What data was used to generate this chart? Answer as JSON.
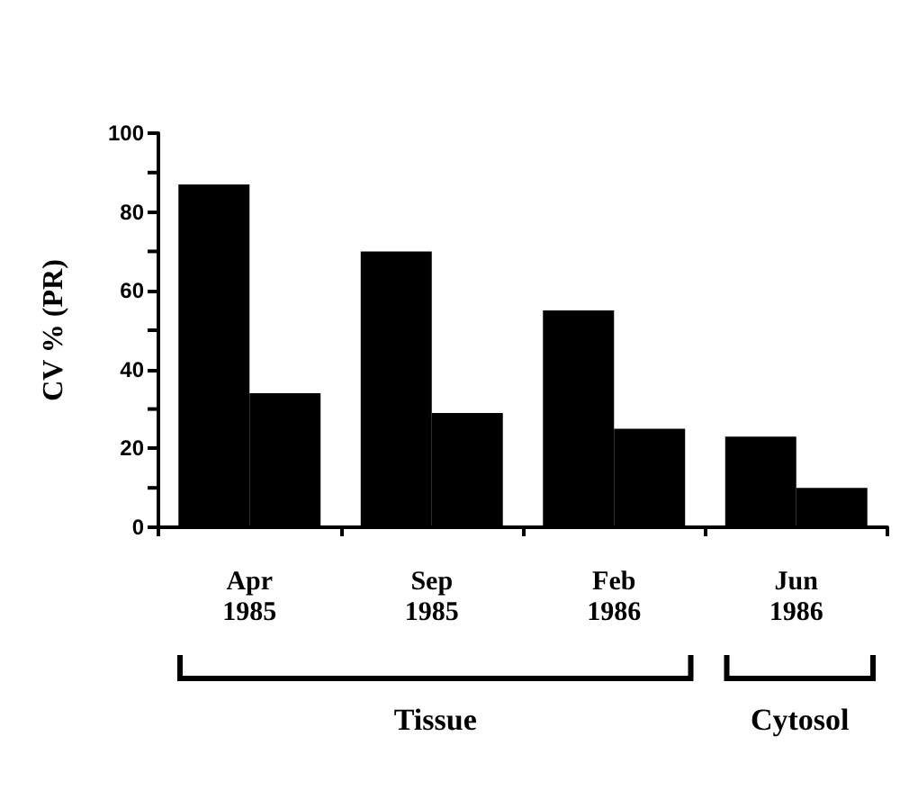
{
  "chart_data": {
    "type": "bar",
    "ylabel": "CV % (PR)",
    "categories": [
      "Apr\n1985",
      "Sep\n1985",
      "Feb\n1986",
      "Jun\n1986"
    ],
    "series": [
      {
        "color": "#000000",
        "values": [
          87,
          70,
          55,
          23
        ]
      },
      {
        "color": "#000000",
        "values": [
          34,
          29,
          25,
          10
        ]
      }
    ],
    "ylim": [
      0,
      100
    ],
    "yticks": [
      0,
      20,
      40,
      60,
      80,
      100
    ],
    "grid": false,
    "annotations": [
      "Tissue",
      "Cytosol"
    ]
  }
}
